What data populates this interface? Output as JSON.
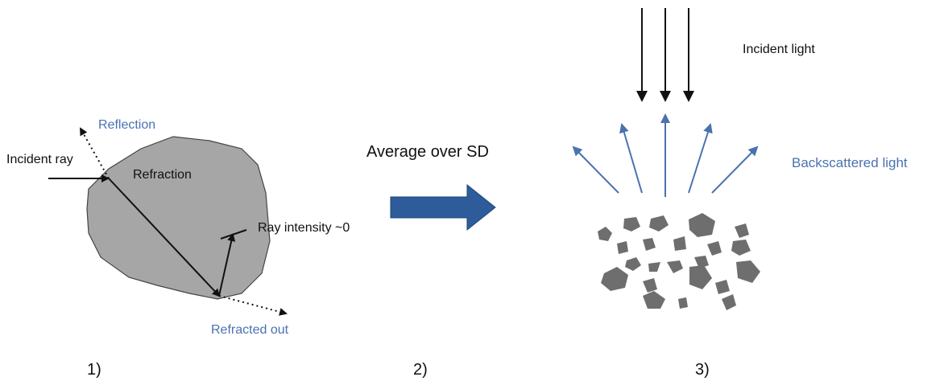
{
  "panels": [
    {
      "label": "1)",
      "annotations": [
        "Reflection",
        "Incident ray",
        "Refraction",
        "Ray intensity ~0",
        "Refracted out"
      ]
    },
    {
      "label": "2)",
      "caption": "Average over SD"
    },
    {
      "label": "3)",
      "annotations": [
        "Incident light",
        "Backscattered light"
      ]
    }
  ]
}
